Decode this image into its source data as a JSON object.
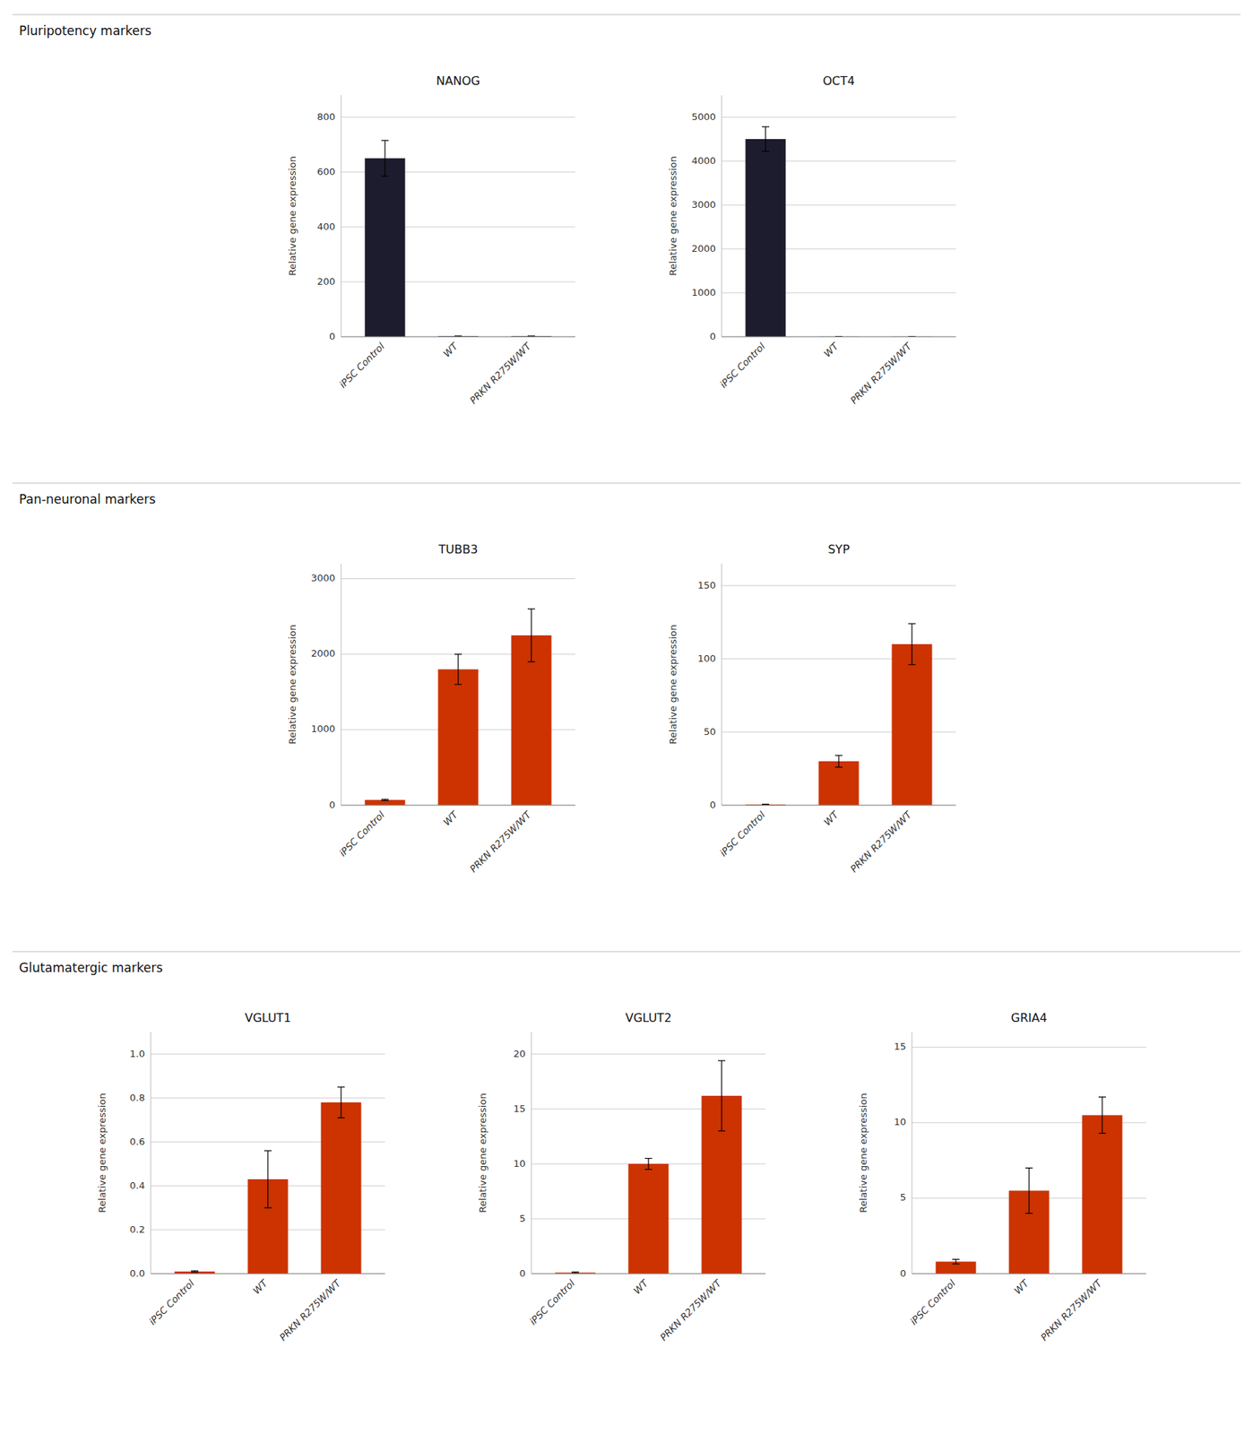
{
  "chart_data": [
    {
      "type": "bar",
      "title": "NANOG",
      "ylabel": "Relative gene expression",
      "categories": [
        "iPSC Control",
        "WT",
        "PRKN R275W/WT"
      ],
      "values": [
        650,
        2,
        2
      ],
      "errors": [
        65,
        0.5,
        0.5
      ],
      "color": "#1c1c2e",
      "ylim": [
        0,
        880
      ],
      "yticks": [
        0,
        200,
        400,
        600,
        800
      ],
      "grid": true
    },
    {
      "type": "bar",
      "title": "OCT4",
      "ylabel": "Relative gene expression",
      "categories": [
        "iPSC Control",
        "WT",
        "PRKN R275W/WT"
      ],
      "values": [
        4500,
        2,
        2
      ],
      "errors": [
        280,
        0.5,
        0.5
      ],
      "color": "#1c1c2e",
      "ylim": [
        0,
        5500
      ],
      "yticks": [
        0,
        1000,
        2000,
        3000,
        4000,
        5000
      ],
      "grid": true
    },
    {
      "type": "bar",
      "title": "TUBB3",
      "ylabel": "Relative gene expression",
      "categories": [
        "iPSC Control",
        "WT",
        "PRKN R275W/WT"
      ],
      "values": [
        70,
        1800,
        2250
      ],
      "errors": [
        8,
        200,
        350
      ],
      "color": "#cc3300",
      "ylim": [
        0,
        3200
      ],
      "yticks": [
        0,
        1000,
        2000,
        3000
      ],
      "grid": true
    },
    {
      "type": "bar",
      "title": "SYP",
      "ylabel": "Relative gene expression",
      "categories": [
        "iPSC Control",
        "WT",
        "PRKN R275W/WT"
      ],
      "values": [
        0.5,
        30,
        110
      ],
      "errors": [
        0.2,
        4,
        14
      ],
      "color": "#cc3300",
      "ylim": [
        0,
        165
      ],
      "yticks": [
        0,
        50,
        100,
        150
      ],
      "grid": true
    },
    {
      "type": "bar",
      "title": "VGLUT1",
      "ylabel": "Relative gene expression",
      "categories": [
        "iPSC Control",
        "WT",
        "PRKN R275W/WT"
      ],
      "values": [
        0.01,
        0.43,
        0.78
      ],
      "errors": [
        0.003,
        0.13,
        0.07
      ],
      "color": "#cc3300",
      "ylim": [
        0,
        1.1
      ],
      "yticks": [
        {
          "value": 0,
          "label": "0.0"
        },
        0.2,
        0.4,
        0.6,
        0.8,
        {
          "value": 1,
          "label": "1.0"
        }
      ],
      "grid": true
    },
    {
      "type": "bar",
      "title": "VGLUT2",
      "ylabel": "Relative gene expression",
      "categories": [
        "iPSC Control",
        "WT",
        "PRKN R275W/WT"
      ],
      "values": [
        0.1,
        10,
        16.2
      ],
      "errors": [
        0.05,
        0.5,
        3.2
      ],
      "color": "#cc3300",
      "ylim": [
        0,
        22
      ],
      "yticks": [
        0,
        5,
        10,
        15,
        20
      ],
      "grid": true
    },
    {
      "type": "bar",
      "title": "GRIA4",
      "ylabel": "Relative gene expression",
      "categories": [
        "iPSC Control",
        "WT",
        "PRKN R275W/WT"
      ],
      "values": [
        0.8,
        5.5,
        10.5
      ],
      "errors": [
        0.15,
        1.5,
        1.2
      ],
      "color": "#cc3300",
      "ylim": [
        0,
        16
      ],
      "yticks": [
        0,
        5,
        10,
        15
      ],
      "grid": true
    }
  ],
  "annotations": [
    "Pluripotency markers",
    "Pan-neuronal markers",
    "Glutamatergic markers"
  ]
}
